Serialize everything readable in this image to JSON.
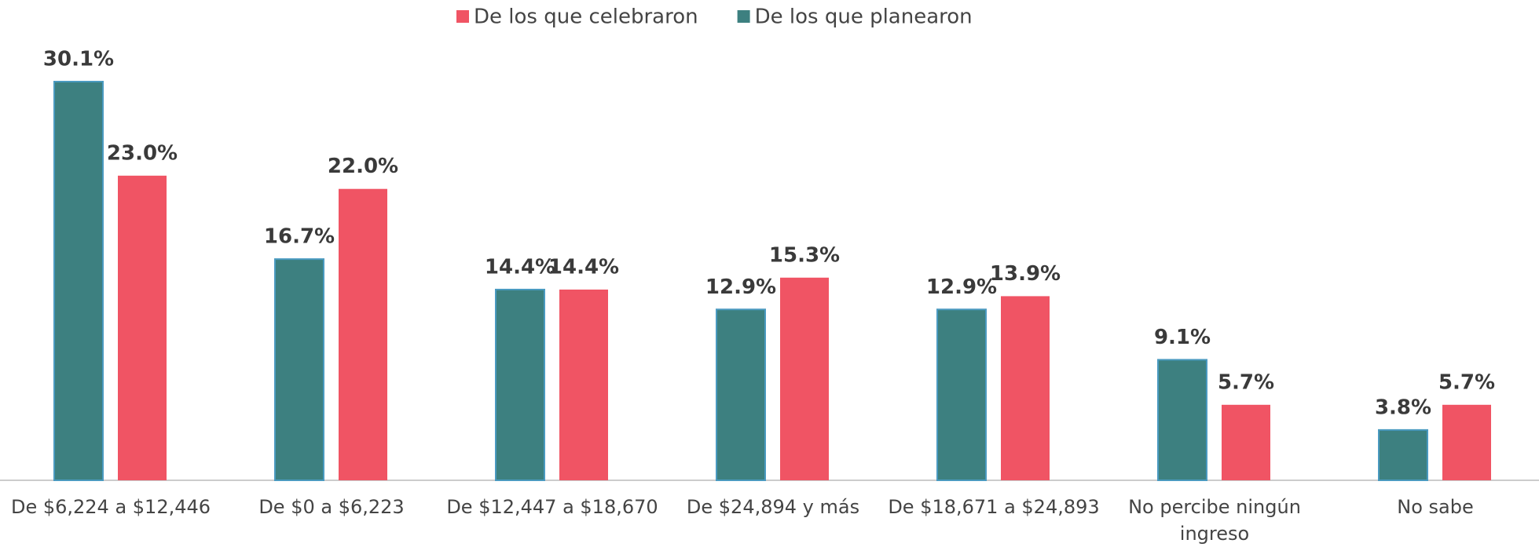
{
  "chart_data": {
    "type": "bar",
    "categories": [
      "De $6,224 a $12,446",
      "De $0 a $6,223",
      "De $12,447 a $18,670",
      "De $24,894 y más",
      "De $18,671 a $24,893",
      "No percibe ningún ingreso",
      "No sabe"
    ],
    "series": [
      {
        "name": "De los que planearon",
        "color": "#3d8080",
        "values": [
          30.1,
          16.7,
          14.4,
          12.9,
          12.9,
          9.1,
          3.8
        ],
        "value_labels": [
          "30.1%",
          "16.7%",
          "14.4%",
          "12.9%",
          "12.9%",
          "9.1%",
          "3.8%"
        ]
      },
      {
        "name": "De los que celebraron",
        "color": "#f05464",
        "values": [
          23.0,
          22.0,
          14.4,
          15.3,
          13.9,
          5.7,
          5.7
        ],
        "value_labels": [
          "23.0%",
          "22.0%",
          "14.4%",
          "15.3%",
          "13.9%",
          "5.7%",
          "5.7%"
        ]
      }
    ],
    "legend_order": [
      1,
      0
    ]
  }
}
